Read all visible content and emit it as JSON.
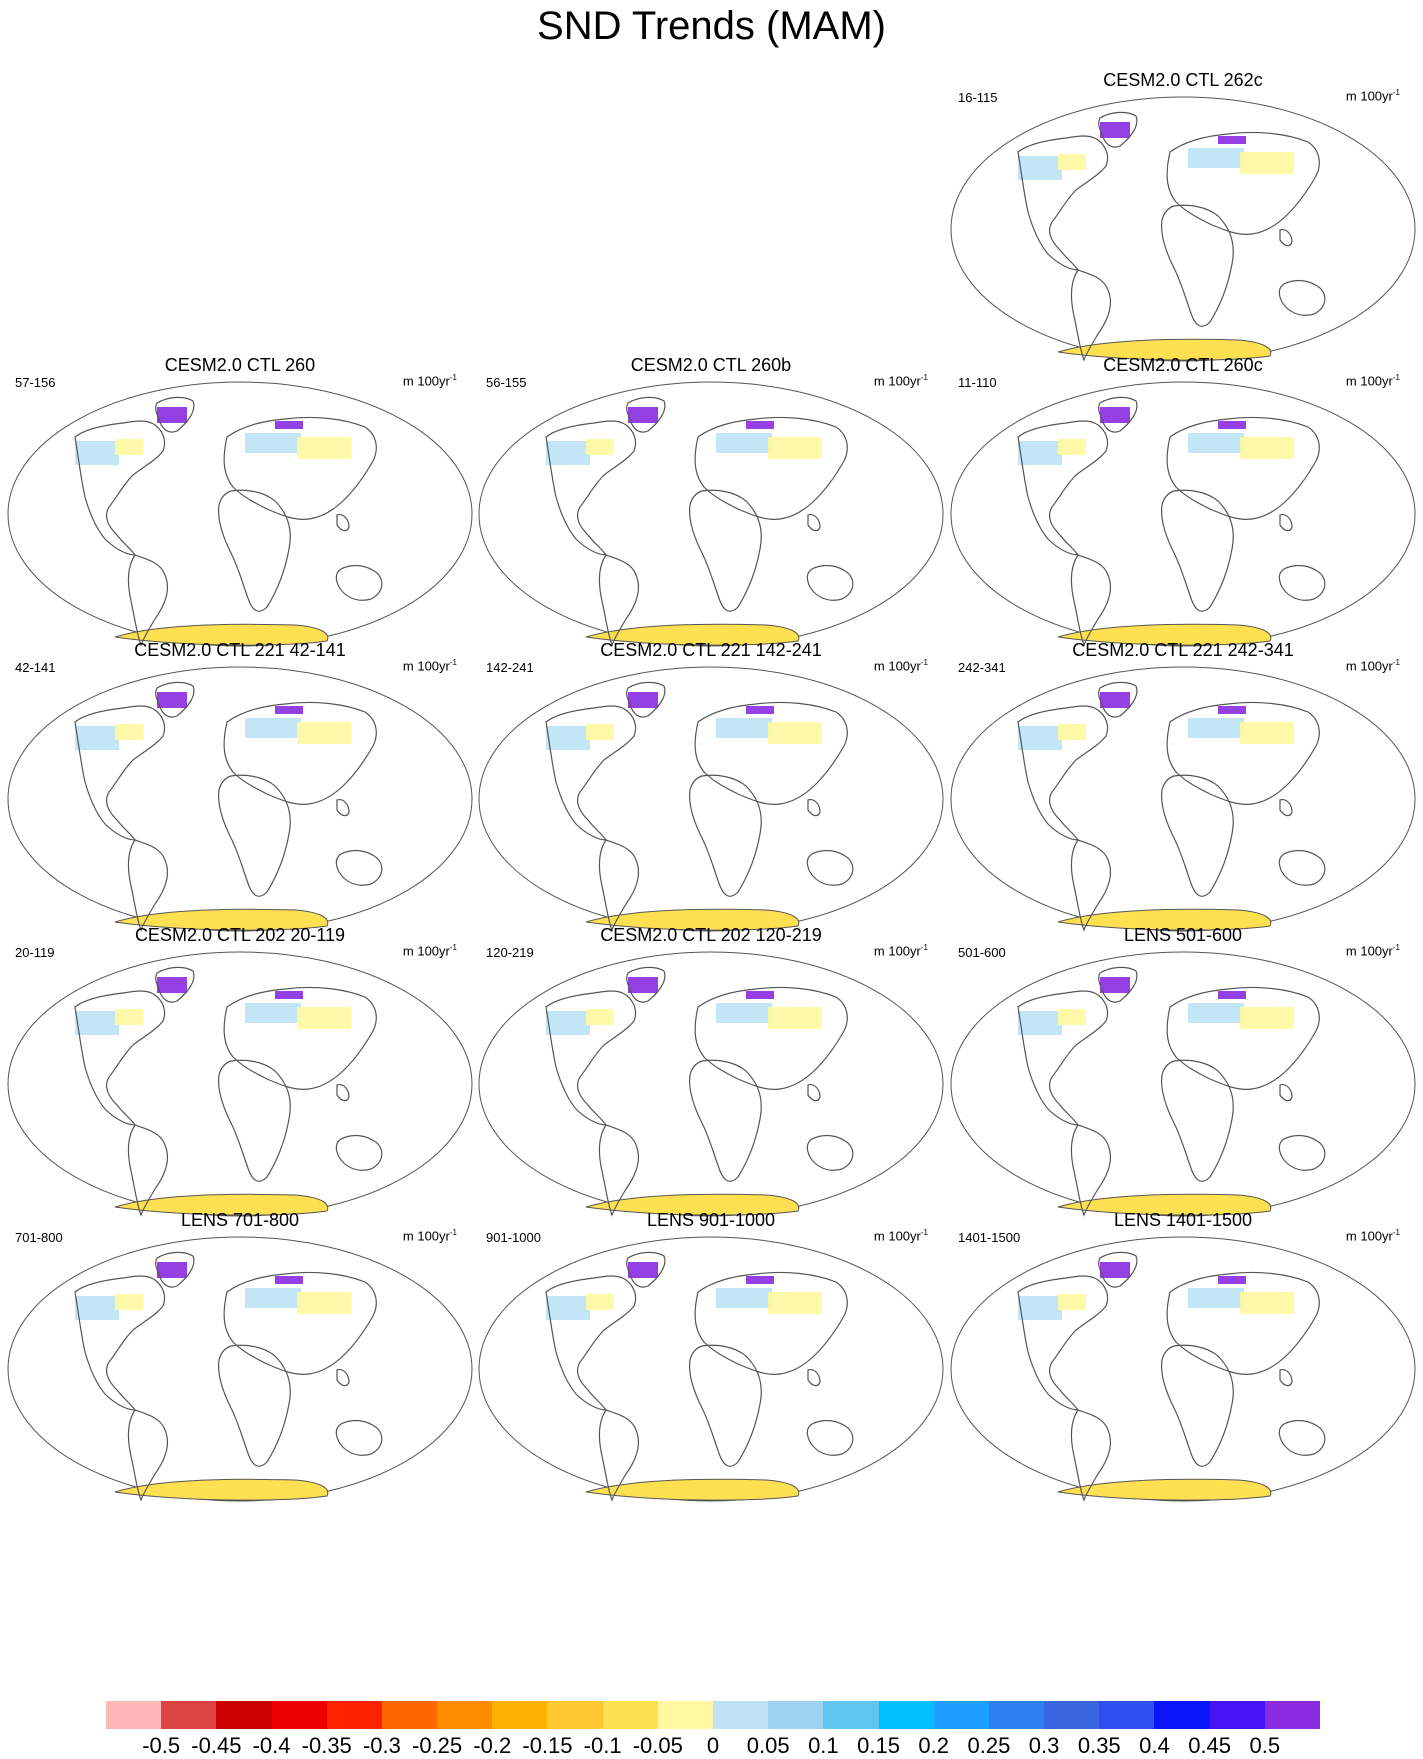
{
  "title": "SND Trends (MAM)",
  "unit_prefix": "m 100yr",
  "unit_exp": "-1",
  "panels": [
    {
      "title": "CESM2.0 CTL 262c",
      "left": "16-115"
    },
    {
      "title": "CESM2.0 CTL 260",
      "left": "57-156"
    },
    {
      "title": "CESM2.0 CTL 260b",
      "left": "56-155"
    },
    {
      "title": "CESM2.0 CTL 260c",
      "left": "11-110"
    },
    {
      "title": "CESM2.0 CTL 221 42-141",
      "left": "42-141"
    },
    {
      "title": "CESM2.0 CTL 221 142-241",
      "left": "142-241"
    },
    {
      "title": "CESM2.0 CTL 221 242-341",
      "left": "242-341"
    },
    {
      "title": "CESM2.0 CTL 202 20-119",
      "left": "20-119"
    },
    {
      "title": "CESM2.0 CTL 202 120-219",
      "left": "120-219"
    },
    {
      "title": "LENS 501-600",
      "left": "501-600"
    },
    {
      "title": "LENS 701-800",
      "left": "701-800"
    },
    {
      "title": "LENS 901-1000",
      "left": "901-1000"
    },
    {
      "title": "LENS 1401-1500",
      "left": "1401-1500"
    }
  ],
  "colorbar": {
    "labels": [
      "-0.5",
      "-0.45",
      "-0.4",
      "-0.35",
      "-0.3",
      "-0.25",
      "-0.2",
      "-0.15",
      "-0.1",
      "-0.05",
      "0",
      "0.05",
      "0.1",
      "0.15",
      "0.2",
      "0.25",
      "0.3",
      "0.35",
      "0.4",
      "0.45",
      "0.5"
    ],
    "colors": [
      "#ffb6b6",
      "#dc4444",
      "#cc0000",
      "#ee0000",
      "#ff2200",
      "#ff6600",
      "#ff8c00",
      "#ffb000",
      "#ffc830",
      "#ffe050",
      "#fff8a0",
      "#bde3f5",
      "#9dd3ef",
      "#5fc4ef",
      "#00bfff",
      "#1e9fff",
      "#2e7ff0",
      "#3866e0",
      "#2f50f0",
      "#0a16f8",
      "#4414f4",
      "#8a2be2"
    ]
  }
}
